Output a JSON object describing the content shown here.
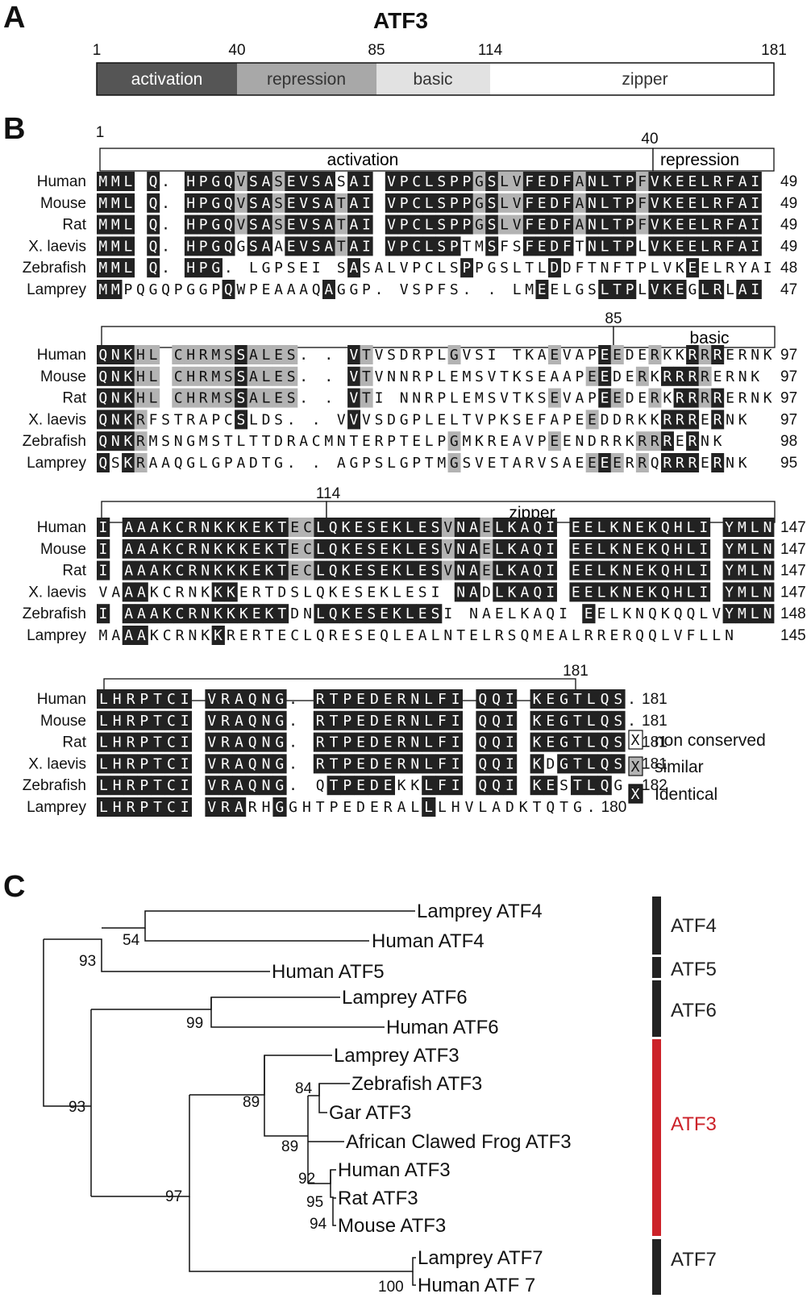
{
  "panels": {
    "a": "A",
    "b": "B",
    "c": "C"
  },
  "panel_a": {
    "title": "ATF3",
    "domains": [
      {
        "label": "activation",
        "start": 1,
        "end": 40,
        "fill": "#555555",
        "text_color": "#ffffff"
      },
      {
        "label": "repression",
        "start": 40,
        "end": 85,
        "fill": "#a8a8a8",
        "text_color": "#333333"
      },
      {
        "label": "basic",
        "start": 85,
        "end": 114,
        "fill": "#e2e2e2",
        "text_color": "#333333"
      },
      {
        "label": "zipper",
        "start": 114,
        "end": 181,
        "fill": "#ffffff",
        "text_color": "#333333"
      }
    ],
    "ticks": [
      "1",
      "40",
      "85",
      "114",
      "181"
    ]
  },
  "panel_b": {
    "species": [
      "Human",
      "Mouse",
      "Rat",
      "X.  laevis",
      "Zebrafish",
      "Lamprey"
    ],
    "colors": {
      "identical": "#222222",
      "similar": "#b3b3b3",
      "none": "#ffffff"
    },
    "blocks": [
      {
        "domain_labels": [
          "activation",
          "repression"
        ],
        "tick_labels": [
          "1",
          "40"
        ],
        "sequences": [
          "MML Q. HPGQVSASEVSASAI VPCLSPPGSLVFEDFANLTPFVKEELRFAI",
          "MML Q. HPGQVSASEVSATAI VPCLSPPGSLVFEDFANLTPFVKEELRFAI",
          "MML Q. HPGQVSASEVSATAI VPCLSPPGSLVFEDFANLTPFVKEELRFAI",
          "MML Q. HPGQGSAAEVSATAI VPCLSPTMSFSFEDFTNLTPLVKEELRFAI",
          "MML Q. HPG. LGPSEI SASALVPCLSPPGSLTLDDFTNFTPLVKEELRYAI",
          "MMPQGQPGGPQWPEAAAQAGGP. VSPFS. . LMEELGSLTPLVKEGLRLAI"
        ],
        "end_numbers": [
          "49",
          "49",
          "49",
          "49",
          "48",
          "47"
        ]
      },
      {
        "domain_labels": [
          "basic"
        ],
        "tick_labels": [
          "85"
        ],
        "sequences": [
          "QNKHL CHRMSSALES. . VTVSDRPLGVSI TKAEVAPEEDERKKRRRERNK",
          "QNKHL CHRMSSALES. . VTVNNRPLEMSVTKSEAAPEEDERKRRRRERNK",
          "QNKHL CHRMSSALES. . VTI NNRPLEMSVTKSEVAPEEDERKRRRRERNK",
          "QNKRFSTRAPCSLDS. . VVVSDGPLELTVPKSEFAPEEDDRKKRRRERNK",
          "QNKRMSNGMSTLTTDRACMNTERPTELPGMKREAVPEENDRRKRRRERNK",
          "QSKRAAQGLGPADTG. . AGPSLGPTMGSVETARVSAEEEERRQRRRERNK"
        ],
        "end_numbers": [
          "97",
          "97",
          "97",
          "97",
          "98",
          "95"
        ]
      },
      {
        "domain_labels": [
          "zipper"
        ],
        "tick_labels": [
          "114"
        ],
        "sequences": [
          "I AAAKCRNKKKEKTECLQKESEKLESVNAELKAQI EELKNEKQHLI YMLN",
          "I AAAKCRNKKKEKTECLQKESEKLESVNAELKAQI EELKNEKQHLI YMLN",
          "I AAAKCRNKKKEKTECLQKESEKLESVNAELKAQI EELKNEKQHLI YMLN",
          "VAAAKCRNKKKERTDSLQKESEKLESI NADLKAQI EELKNEKQHLI YMLN",
          "I AAAKCRNKKKEKTDNLQKESEKLESI NAELKAQI EELKNQKQQLVYMLN",
          "MAAAKCRNKKRERTECLQRESEQLEALNTELRSQMEALRRERQQLVFLLN"
        ],
        "end_numbers": [
          "147",
          "147",
          "147",
          "147",
          "148",
          "145"
        ]
      },
      {
        "domain_labels": [],
        "tick_labels": [
          "181"
        ],
        "sequences": [
          "LHRPTCI VRAQNG. RTPEDERNLFI QQI KEGTLQS.",
          "LHRPTCI VRAQNG. RTPEDERNLFI QQI KEGTLQS.",
          "LHRPTCI VRAQNG. RTPEDERNLFI QQI KEGTLQS.",
          "LHRPTCI VRAQNG. RTPEDERNLFI QQI KDGTLQS.",
          "LHRPTCI VRAQNG. QTPEDEKKLFI QQI KESTLQG.",
          "LHRPTCI VRARHGGHTPEDERALLLHVLADKTQTG."
        ],
        "end_numbers": [
          "181",
          "181",
          "181",
          "181",
          "182",
          "180"
        ]
      }
    ],
    "legend": [
      {
        "symbol": "X",
        "label": "non  conserved",
        "fill": "#ffffff",
        "text_color": "#111111"
      },
      {
        "symbol": "X",
        "label": "similar",
        "fill": "#b3b3b3",
        "text_color": "#111111"
      },
      {
        "symbol": "X",
        "label": "Identical",
        "fill": "#222222",
        "text_color": "#ffffff"
      }
    ]
  },
  "panel_c": {
    "leaves": {
      "lamprey_atf4": "Lamprey ATF4",
      "human_atf4": "Human ATF4",
      "human_atf5": "Human ATF5",
      "lamprey_atf6": "Lamprey ATF6",
      "human_atf6": "Human ATF6",
      "lamprey_atf3": "Lamprey ATF3",
      "zebrafish_atf3": "Zebrafish ATF3",
      "gar_atf3": "Gar ATF3",
      "frog_atf3": "African Clawed Frog ATF3",
      "human_atf3": "Human ATF3",
      "rat_atf3": "Rat ATF3",
      "mouse_atf3": "Mouse ATF3",
      "lamprey_atf7": "Lamprey ATF7",
      "human_atf7": "Human ATF 7"
    },
    "bootstrap": {
      "atf4_pair": "54",
      "atf4_atf5": "93",
      "atf6_pair": "99",
      "root": "93",
      "atf3_atf7": "97",
      "atf3_vert": "89",
      "zebra_gar": "84",
      "tetrapod": "89",
      "mammal": "92",
      "rat_mouse_a": "95",
      "rat_mouse_b": "94",
      "atf7_pair": "100"
    },
    "clades": [
      {
        "label": "ATF4",
        "color": "#222222"
      },
      {
        "label": "ATF5",
        "color": "#222222"
      },
      {
        "label": "ATF6",
        "color": "#222222"
      },
      {
        "label": "ATF3",
        "color": "#cc2229"
      },
      {
        "label": "ATF7",
        "color": "#222222"
      }
    ]
  }
}
